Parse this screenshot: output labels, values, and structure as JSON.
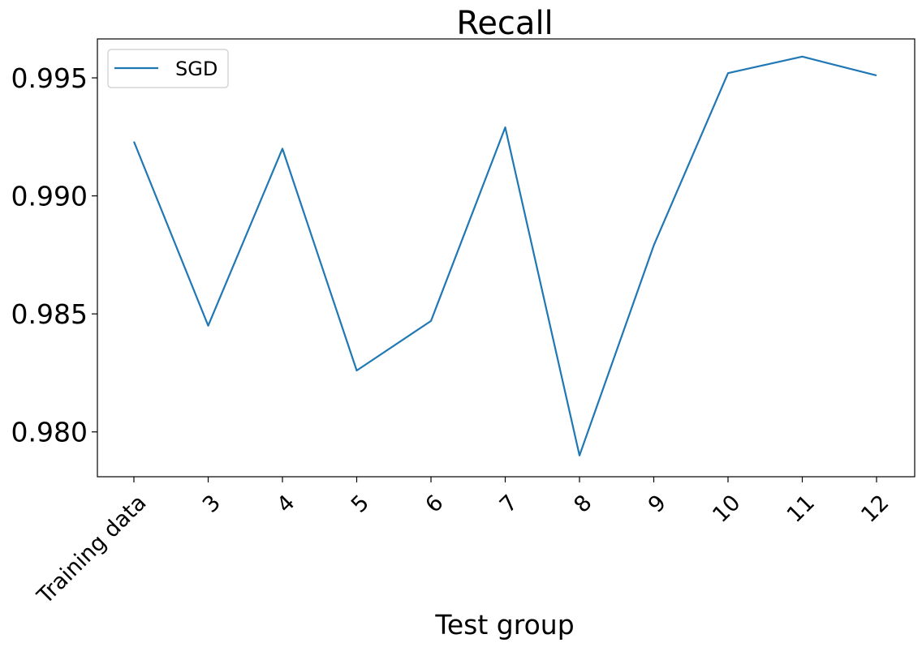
{
  "chart_data": {
    "type": "line",
    "title": "Recall",
    "xlabel": "Test group",
    "ylabel": "",
    "categories": [
      "Training data",
      "3",
      "4",
      "5",
      "6",
      "7",
      "8",
      "9",
      "10",
      "11",
      "12"
    ],
    "series": [
      {
        "name": "SGD",
        "color": "#1f77b4",
        "values": [
          0.9923,
          0.9845,
          0.992,
          0.9826,
          0.9847,
          0.9929,
          0.979,
          0.9879,
          0.9952,
          0.9959,
          0.9951
        ]
      }
    ],
    "yticks": [
      0.98,
      0.985,
      0.99,
      0.995
    ],
    "ytick_labels": [
      "0.980",
      "0.985",
      "0.990",
      "0.995"
    ],
    "ylim": [
      0.9781,
      0.99665
    ],
    "grid": false,
    "legend_position": "upper-left"
  }
}
